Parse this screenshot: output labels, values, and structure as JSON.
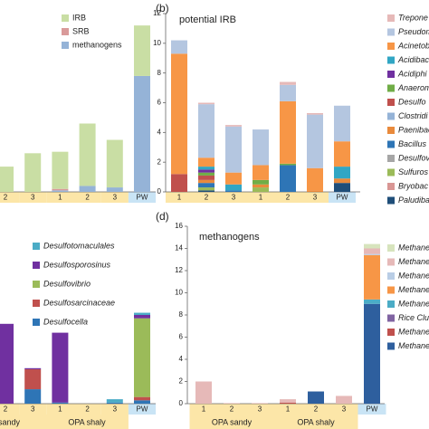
{
  "chart_data": [
    {
      "type": "bar",
      "stacked": true,
      "categories": [
        "2",
        "3",
        "1",
        "2",
        "3",
        "PW"
      ],
      "ylim": [
        0,
        12
      ],
      "series": [
        {
          "name": "IRB",
          "color": "#c9dea4",
          "values": [
            1.7,
            2.6,
            2.5,
            4.2,
            3.2,
            3.4
          ]
        },
        {
          "name": "SRB",
          "color": "#d99a9a",
          "values": [
            0,
            0,
            0.1,
            0,
            0,
            0
          ]
        },
        {
          "name": "methanogens",
          "color": "#95b3d7",
          "values": [
            0,
            0,
            0.1,
            0.4,
            0.3,
            7.8
          ]
        }
      ]
    },
    {
      "type": "bar",
      "stacked": true,
      "panel_label": "(b)",
      "title": "potential IRB",
      "categories": [
        "1",
        "2",
        "3",
        "1",
        "2",
        "3",
        "PW"
      ],
      "ylim": [
        0,
        12
      ],
      "yticks": [
        0,
        2,
        4,
        6,
        8,
        10,
        12
      ],
      "series": [
        {
          "name": "Trepone",
          "color": "#e6b9b8",
          "values": [
            0,
            0.1,
            0.1,
            0,
            0.2,
            0.1,
            0
          ]
        },
        {
          "name": "Pseudom",
          "color": "#b4c6e0",
          "values": [
            0.9,
            3.6,
            3.1,
            2.4,
            1.1,
            3.6,
            2.4
          ]
        },
        {
          "name": "Acinetob",
          "color": "#f79646",
          "values": [
            8.1,
            0.6,
            0.8,
            1.0,
            4.2,
            1.5,
            1.7
          ]
        },
        {
          "name": "Acidibac",
          "color": "#31a6c4",
          "values": [
            0,
            0.2,
            0.4,
            0,
            0,
            0,
            0.8
          ]
        },
        {
          "name": "Acidiphi",
          "color": "#7030a0",
          "values": [
            0,
            0.2,
            0,
            0,
            0,
            0,
            0
          ]
        },
        {
          "name": "Anaerom",
          "color": "#70ad47",
          "values": [
            0,
            0.2,
            0,
            0.3,
            0.1,
            0,
            0
          ]
        },
        {
          "name": "Desulfo",
          "color": "#c0504d",
          "values": [
            1.2,
            0.3,
            0,
            0,
            0,
            0,
            0
          ]
        },
        {
          "name": "Clostridi",
          "color": "#95b3d7",
          "values": [
            0,
            0,
            0,
            0,
            0,
            0,
            0
          ]
        },
        {
          "name": "Paenibac",
          "color": "#e98a3c",
          "values": [
            0,
            0.2,
            0,
            0.2,
            0,
            0.1,
            0.3
          ]
        },
        {
          "name": "Bacillus",
          "color": "#2e75b6",
          "values": [
            0,
            0.3,
            0.1,
            0,
            1.8,
            0,
            0
          ]
        },
        {
          "name": "Desulfov",
          "color": "#a6a6a6",
          "values": [
            0,
            0,
            0,
            0,
            0,
            0,
            0
          ]
        },
        {
          "name": "Sulfuros",
          "color": "#9bbb59",
          "values": [
            0,
            0.2,
            0,
            0.3,
            0,
            0,
            0
          ]
        },
        {
          "name": "Bryobac",
          "color": "#d99694",
          "values": [
            0,
            0,
            0,
            0,
            0,
            0,
            0
          ]
        },
        {
          "name": "Paludiba",
          "color": "#1f4e79",
          "values": [
            0,
            0.1,
            0,
            0,
            0,
            0,
            0.6
          ]
        }
      ]
    },
    {
      "type": "bar",
      "stacked": true,
      "categories": [
        "2",
        "3",
        "1",
        "2",
        "3",
        "PW"
      ],
      "group_labels": [
        "sandy",
        "OPA shaly"
      ],
      "ylim": [
        0,
        16
      ],
      "series": [
        {
          "name": "Desulfotomaculales",
          "color": "#4bacc6",
          "values": [
            0,
            0,
            0,
            0,
            0.3,
            0.2
          ]
        },
        {
          "name": "Desulfosporosinus",
          "color": "#7030a0",
          "values": [
            7.2,
            0.1,
            6.3,
            0,
            0,
            0.3
          ]
        },
        {
          "name": "Desulfovibrio",
          "color": "#9bbb59",
          "values": [
            0,
            0,
            0,
            0,
            0,
            7.1
          ]
        },
        {
          "name": "Desulfosarcinaceae",
          "color": "#c0504d",
          "values": [
            0,
            1.8,
            0,
            0,
            0,
            0.3
          ]
        },
        {
          "name": "Desulfocella",
          "color": "#2e75b6",
          "values": [
            0,
            1.3,
            0.1,
            0,
            0.1,
            0.3
          ]
        }
      ]
    },
    {
      "type": "bar",
      "stacked": true,
      "panel_label": "(d)",
      "title": "methanogens",
      "categories": [
        "1",
        "2",
        "3",
        "1",
        "2",
        "3",
        "PW"
      ],
      "group_labels": [
        "OPA sandy",
        "OPA shaly"
      ],
      "ylim": [
        0,
        16
      ],
      "yticks": [
        0,
        2,
        4,
        6,
        8,
        10,
        12,
        14,
        16
      ],
      "series": [
        {
          "name": "Methane",
          "color": "#d7e4bd",
          "values": [
            0,
            0,
            0,
            0,
            0,
            0,
            0.4
          ]
        },
        {
          "name": "Methane",
          "color": "#e6b9b8",
          "values": [
            2.0,
            0.05,
            0.05,
            0.3,
            0,
            0.7,
            0.5
          ]
        },
        {
          "name": "Methane",
          "color": "#b9cde5",
          "values": [
            0,
            0,
            0,
            0,
            0,
            0,
            0.1
          ]
        },
        {
          "name": "Methane",
          "color": "#f79646",
          "values": [
            0,
            0,
            0,
            0,
            0,
            0,
            4.0
          ]
        },
        {
          "name": "Methane",
          "color": "#4bacc6",
          "values": [
            0,
            0,
            0,
            0,
            0,
            0,
            0.4
          ]
        },
        {
          "name": "Rice Clus",
          "color": "#8064a2",
          "values": [
            0,
            0,
            0,
            0,
            0,
            0,
            0
          ]
        },
        {
          "name": "Methane",
          "color": "#c0504d",
          "values": [
            0,
            0,
            0,
            0.1,
            0,
            0,
            0
          ]
        },
        {
          "name": "Methane",
          "color": "#2e5f9e",
          "values": [
            0,
            0,
            0,
            0,
            1.1,
            0,
            9.0
          ]
        }
      ]
    }
  ]
}
